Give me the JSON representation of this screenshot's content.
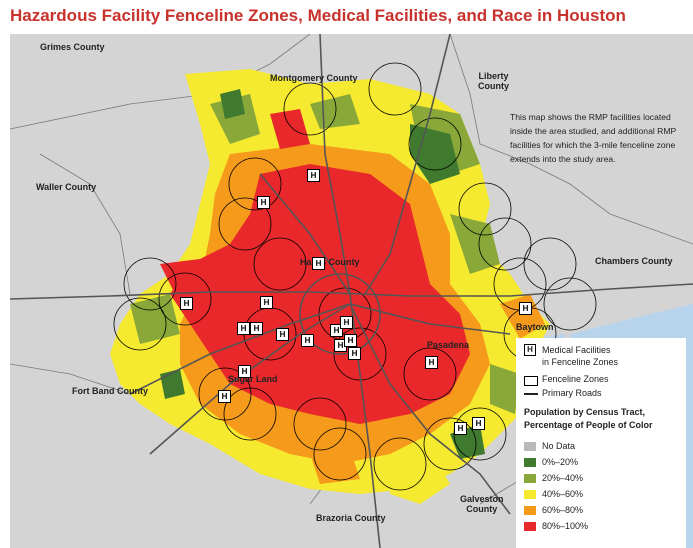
{
  "title": "Hazardous Facility Fenceline Zones, Medical Facilities, and Race in Houston",
  "counties": {
    "grimes": "Grimes County",
    "montgomery": "Montgomery County",
    "liberty_1": "Liberty",
    "liberty_2": "County",
    "waller": "Waller County",
    "harris": "Harris County",
    "chambers": "Chambers County",
    "fort_bend": "Fort Band County",
    "brazoria": "Brazoria County",
    "galveston_1": "Galveston",
    "galveston_2": "County"
  },
  "cities": {
    "baytown": "Baytown",
    "pasadena": "Pasadena",
    "sugar_land": "Sugar Land"
  },
  "note": "This map shows the RMP facilities located inside the area studied, and additional RMP facilities for which the 3-mile fenceline zone extends into the study area.",
  "legend": {
    "medical_line1": "Medical Facilities",
    "medical_line2": "in Fenceline Zones",
    "fenceline": "Fenceline Zones",
    "roads": "Primary Roads",
    "population_title_1": "Population by Census Tract,",
    "population_title_2": "Percentage of People of Color",
    "categories": [
      {
        "label": "No Data",
        "color": "#b9b9b9"
      },
      {
        "label": "0%–20%",
        "color": "#3f7a2e"
      },
      {
        "label": "20%–40%",
        "color": "#8aa839"
      },
      {
        "label": "40%–60%",
        "color": "#f5ea30"
      },
      {
        "label": "60%–80%",
        "color": "#f59a1a"
      },
      {
        "label": "80%–100%",
        "color": "#e8282a"
      }
    ]
  },
  "medical_symbol": "H",
  "medical_facility_count": 20
}
